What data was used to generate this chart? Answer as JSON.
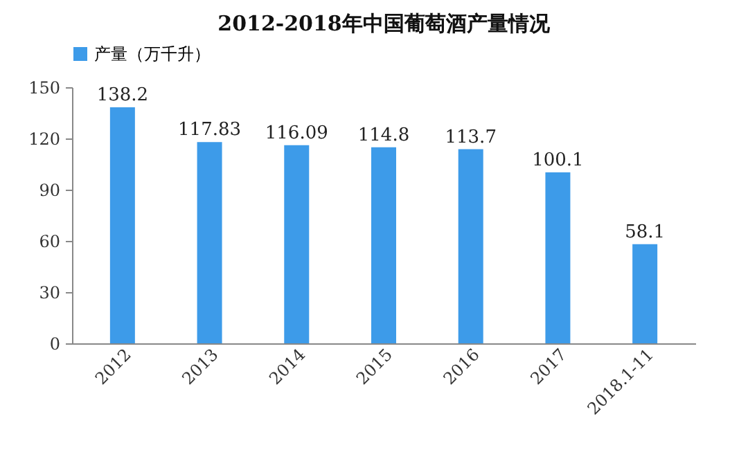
{
  "chart_data": {
    "type": "bar",
    "title": "2012-2018年中国葡萄酒产量情况",
    "categories": [
      "2012",
      "2013",
      "2014",
      "2015",
      "2016",
      "2017",
      "2018.1-11"
    ],
    "series": [
      {
        "name": "产量（万千升）",
        "color": "#3d9be9",
        "values": [
          138.2,
          117.83,
          116.09,
          114.8,
          113.7,
          100.1,
          58.1
        ]
      }
    ],
    "ylim": [
      0,
      150
    ],
    "yticks": [
      0,
      30,
      60,
      90,
      120,
      150
    ],
    "grid": false,
    "legend": "top",
    "data_labels": true
  }
}
